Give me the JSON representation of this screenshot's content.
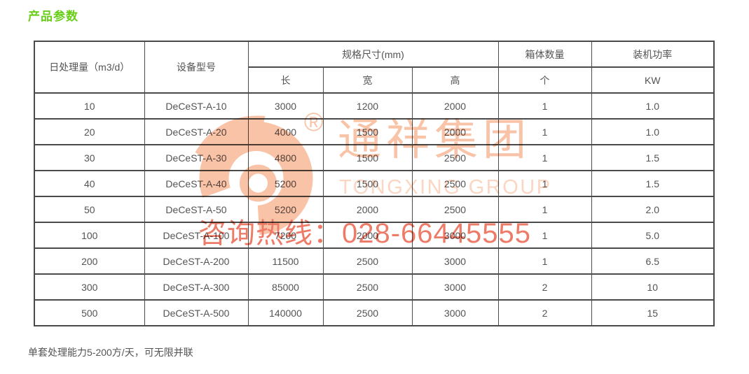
{
  "page": {
    "title": "产品参数",
    "footnote": "单套处理能力5-200方/天，可无限并联"
  },
  "colors": {
    "title_green": "#68ce17",
    "border": "#4a4a4a",
    "text": "#545454",
    "watermark_light": "#f9c3a8",
    "watermark_lighter": "#fbd6c3",
    "watermark_strong": "#ee7b68"
  },
  "table": {
    "header": {
      "col_daily": "日处理量（m3/d）",
      "col_model": "设备型号",
      "col_spec_group": "规格尺寸(mm)",
      "col_len": "长",
      "col_wid": "宽",
      "col_hgt": "高",
      "col_box_group": "箱体数量",
      "col_box_unit": "个",
      "col_power_group": "装机功率",
      "col_power_unit": "KW"
    },
    "rows": [
      [
        "10",
        "DeCeST-A-10",
        "3000",
        "1200",
        "2000",
        "1",
        "1.0"
      ],
      [
        "20",
        "DeCeST-A-20",
        "4000",
        "1500",
        "2000",
        "1",
        "1.0"
      ],
      [
        "30",
        "DeCeST-A-30",
        "4800",
        "1500",
        "2500",
        "1",
        "1.5"
      ],
      [
        "40",
        "DeCeST-A-40",
        "5200",
        "1500",
        "2500",
        "1",
        "1.5"
      ],
      [
        "50",
        "DeCeST-A-50",
        "5200",
        "2000",
        "2500",
        "1",
        "2.0"
      ],
      [
        "100",
        "DeCeST-A-100",
        "7200",
        "2000",
        "3000",
        "1",
        "5.0"
      ],
      [
        "200",
        "DeCeST-A-200",
        "11500",
        "2500",
        "3000",
        "1",
        "6.5"
      ],
      [
        "300",
        "DeCeST-A-300",
        "85000",
        "2500",
        "3000",
        "2",
        "10"
      ],
      [
        "500",
        "DeCeST-A-500",
        "140000",
        "2500",
        "3000",
        "2",
        "15"
      ]
    ]
  },
  "watermark": {
    "registered": "®",
    "brand_cn": "通祥集团",
    "brand_en": "TONGXING GROUP",
    "hotline": "咨询热线：028-66445555"
  }
}
